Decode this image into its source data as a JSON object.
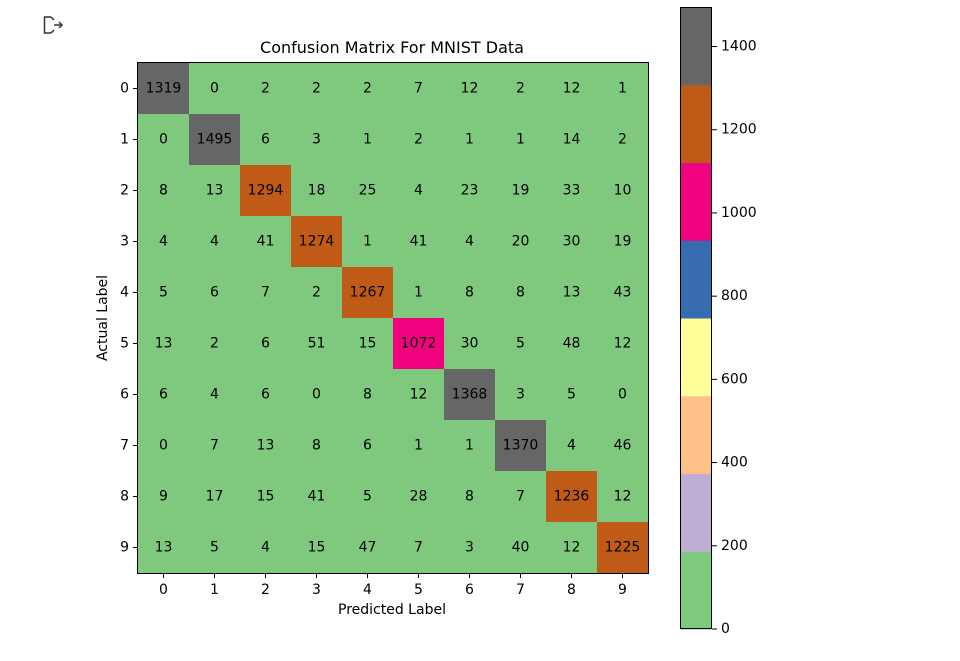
{
  "output_icon": "output-arrow-icon",
  "chart_data": {
    "type": "heatmap",
    "title": "Confusion Matrix For MNIST Data",
    "xlabel": "Predicted Label",
    "ylabel": "Actual Label",
    "x_categories": [
      "0",
      "1",
      "2",
      "3",
      "4",
      "5",
      "6",
      "7",
      "8",
      "9"
    ],
    "y_categories": [
      "0",
      "1",
      "2",
      "3",
      "4",
      "5",
      "6",
      "7",
      "8",
      "9"
    ],
    "values": [
      [
        1319,
        0,
        2,
        2,
        2,
        7,
        12,
        2,
        12,
        1
      ],
      [
        0,
        1495,
        6,
        3,
        1,
        2,
        1,
        1,
        14,
        2
      ],
      [
        8,
        13,
        1294,
        18,
        25,
        4,
        23,
        19,
        33,
        10
      ],
      [
        4,
        4,
        41,
        1274,
        1,
        41,
        4,
        20,
        30,
        19
      ],
      [
        5,
        6,
        7,
        2,
        1267,
        1,
        8,
        8,
        13,
        43
      ],
      [
        13,
        2,
        6,
        51,
        15,
        1072,
        30,
        5,
        48,
        12
      ],
      [
        6,
        4,
        6,
        0,
        8,
        12,
        1368,
        3,
        5,
        0
      ],
      [
        0,
        7,
        13,
        8,
        6,
        1,
        1,
        1370,
        4,
        46
      ],
      [
        9,
        17,
        15,
        41,
        5,
        28,
        8,
        7,
        1236,
        12
      ],
      [
        13,
        5,
        4,
        15,
        47,
        7,
        3,
        40,
        12,
        1225
      ]
    ],
    "colormap": {
      "name": "Accent",
      "vmin": 0,
      "vmax": 1495,
      "colors": [
        "#7fc97f",
        "#beaed4",
        "#fdc086",
        "#ffff99",
        "#386cb0",
        "#f0027f",
        "#bf5b17",
        "#666666"
      ]
    },
    "colorbar": {
      "ticks": [
        0,
        200,
        400,
        600,
        800,
        1000,
        1200,
        1400
      ],
      "tick_labels": [
        "0",
        "200",
        "400",
        "600",
        "800",
        "1000",
        "1200",
        "1400"
      ]
    }
  }
}
